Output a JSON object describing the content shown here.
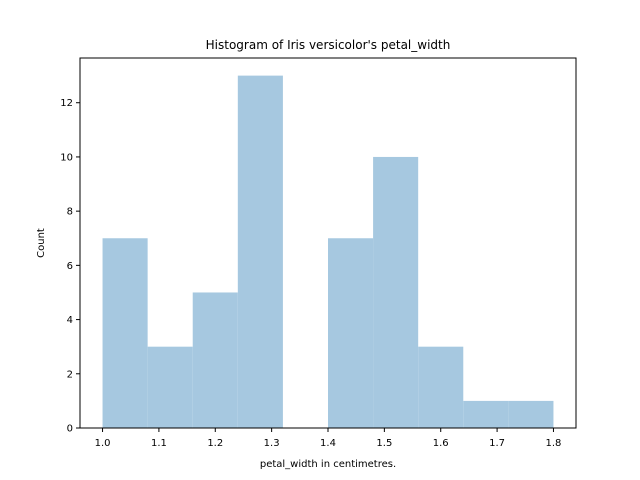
{
  "chart_data": {
    "type": "bar",
    "title": "Histogram of Iris versicolor's petal_width",
    "xlabel": "petal_width in centimetres.",
    "ylabel": "Count",
    "bin_edges": [
      1.0,
      1.08,
      1.16,
      1.24,
      1.32,
      1.4,
      1.48,
      1.56,
      1.64,
      1.72,
      1.8
    ],
    "values": [
      7,
      3,
      5,
      13,
      0,
      7,
      10,
      3,
      1,
      1
    ],
    "xlim": [
      0.96,
      1.84
    ],
    "ylim": [
      0,
      13.65
    ],
    "xticks": [
      1.0,
      1.1,
      1.2,
      1.3,
      1.4,
      1.5,
      1.6,
      1.7,
      1.8
    ],
    "xtick_labels": [
      "1.0",
      "1.1",
      "1.2",
      "1.3",
      "1.4",
      "1.5",
      "1.6",
      "1.7",
      "1.8"
    ],
    "yticks": [
      0,
      2,
      4,
      6,
      8,
      10,
      12
    ],
    "ytick_labels": [
      "0",
      "2",
      "4",
      "6",
      "8",
      "10",
      "12"
    ],
    "grid": false,
    "bar_color": "#a6c8e0"
  }
}
